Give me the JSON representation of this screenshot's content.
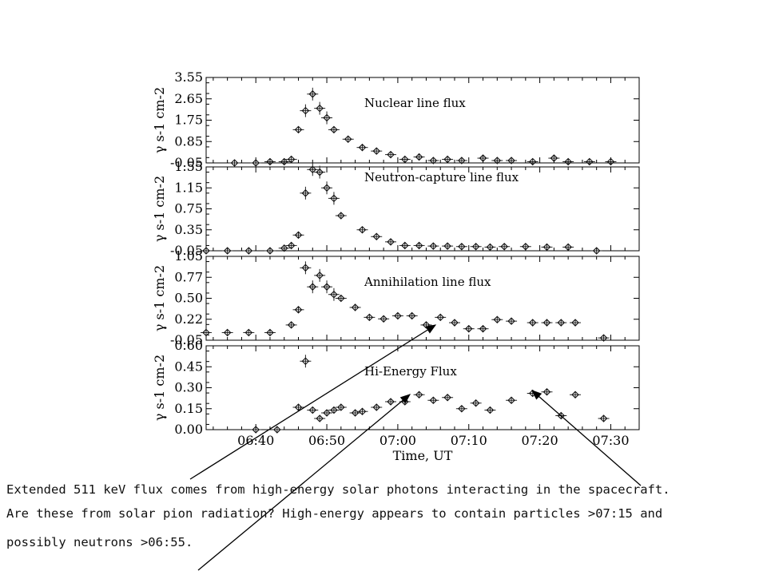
{
  "chart_data": [
    {
      "type": "scatter",
      "title": "Nuclear line flux",
      "ylabel": "γ s-1 cm-2",
      "yticks": [
        "3.55",
        "2.65",
        "1.75",
        "0.85",
        "-0.05"
      ],
      "ylim": [
        -0.05,
        3.55
      ],
      "xlim": [
        "06:33",
        "07:34"
      ],
      "points": [
        {
          "x": "06:37",
          "y": -0.05
        },
        {
          "x": "06:40",
          "y": -0.05
        },
        {
          "x": "06:42",
          "y": 0.0
        },
        {
          "x": "06:44",
          "y": 0.0
        },
        {
          "x": "06:45",
          "y": 0.1
        },
        {
          "x": "06:46",
          "y": 1.35
        },
        {
          "x": "06:47",
          "y": 2.15
        },
        {
          "x": "06:48",
          "y": 2.85
        },
        {
          "x": "06:49",
          "y": 2.25
        },
        {
          "x": "06:50",
          "y": 1.85
        },
        {
          "x": "06:51",
          "y": 1.35
        },
        {
          "x": "06:53",
          "y": 0.95
        },
        {
          "x": "06:55",
          "y": 0.6
        },
        {
          "x": "06:57",
          "y": 0.45
        },
        {
          "x": "06:59",
          "y": 0.3
        },
        {
          "x": "07:01",
          "y": 0.1
        },
        {
          "x": "07:03",
          "y": 0.2
        },
        {
          "x": "07:05",
          "y": 0.05
        },
        {
          "x": "07:07",
          "y": 0.1
        },
        {
          "x": "07:09",
          "y": 0.05
        },
        {
          "x": "07:12",
          "y": 0.15
        },
        {
          "x": "07:14",
          "y": 0.05
        },
        {
          "x": "07:16",
          "y": 0.05
        },
        {
          "x": "07:19",
          "y": 0.0
        },
        {
          "x": "07:22",
          "y": 0.15
        },
        {
          "x": "07:24",
          "y": 0.0
        },
        {
          "x": "07:27",
          "y": 0.0
        },
        {
          "x": "07:30",
          "y": 0.0
        }
      ]
    },
    {
      "type": "scatter",
      "title": "Neutron-capture line flux",
      "ylabel": "γ s-1 cm-2",
      "yticks": [
        "1.55",
        "1.15",
        "0.75",
        "0.35",
        "-0.05"
      ],
      "ylim": [
        -0.05,
        1.55
      ],
      "xlim": [
        "06:33",
        "07:34"
      ],
      "points": [
        {
          "x": "06:33",
          "y": -0.05
        },
        {
          "x": "06:36",
          "y": -0.05
        },
        {
          "x": "06:39",
          "y": -0.05
        },
        {
          "x": "06:42",
          "y": -0.05
        },
        {
          "x": "06:44",
          "y": 0.0
        },
        {
          "x": "06:45",
          "y": 0.05
        },
        {
          "x": "06:46",
          "y": 0.25
        },
        {
          "x": "06:47",
          "y": 1.05
        },
        {
          "x": "06:48",
          "y": 1.5
        },
        {
          "x": "06:49",
          "y": 1.45
        },
        {
          "x": "06:50",
          "y": 1.15
        },
        {
          "x": "06:51",
          "y": 0.95
        },
        {
          "x": "06:52",
          "y": 0.62
        },
        {
          "x": "06:55",
          "y": 0.35
        },
        {
          "x": "06:57",
          "y": 0.22
        },
        {
          "x": "06:59",
          "y": 0.12
        },
        {
          "x": "07:01",
          "y": 0.05
        },
        {
          "x": "07:03",
          "y": 0.05
        },
        {
          "x": "07:05",
          "y": 0.04
        },
        {
          "x": "07:07",
          "y": 0.04
        },
        {
          "x": "07:09",
          "y": 0.03
        },
        {
          "x": "07:11",
          "y": 0.03
        },
        {
          "x": "07:13",
          "y": 0.02
        },
        {
          "x": "07:15",
          "y": 0.03
        },
        {
          "x": "07:18",
          "y": 0.03
        },
        {
          "x": "07:21",
          "y": 0.02
        },
        {
          "x": "07:24",
          "y": 0.02
        },
        {
          "x": "07:28",
          "y": -0.05
        }
      ]
    },
    {
      "type": "scatter",
      "title": "Annihilation line flux",
      "ylabel": "γ s-1 cm-2",
      "yticks": [
        "1.05",
        "0.77",
        "0.50",
        "0.22",
        "-0.05"
      ],
      "ylim": [
        -0.05,
        1.05
      ],
      "xlim": [
        "06:33",
        "07:34"
      ],
      "points": [
        {
          "x": "06:33",
          "y": 0.05
        },
        {
          "x": "06:36",
          "y": 0.05
        },
        {
          "x": "06:39",
          "y": 0.05
        },
        {
          "x": "06:42",
          "y": 0.05
        },
        {
          "x": "06:45",
          "y": 0.15
        },
        {
          "x": "06:46",
          "y": 0.35
        },
        {
          "x": "06:47",
          "y": 0.9
        },
        {
          "x": "06:48",
          "y": 0.65
        },
        {
          "x": "06:49",
          "y": 0.8
        },
        {
          "x": "06:50",
          "y": 0.65
        },
        {
          "x": "06:51",
          "y": 0.55
        },
        {
          "x": "06:52",
          "y": 0.5
        },
        {
          "x": "06:54",
          "y": 0.38
        },
        {
          "x": "06:56",
          "y": 0.25
        },
        {
          "x": "06:58",
          "y": 0.23
        },
        {
          "x": "07:00",
          "y": 0.27
        },
        {
          "x": "07:02",
          "y": 0.27
        },
        {
          "x": "07:04",
          "y": 0.15
        },
        {
          "x": "07:06",
          "y": 0.25
        },
        {
          "x": "07:08",
          "y": 0.18
        },
        {
          "x": "07:10",
          "y": 0.1
        },
        {
          "x": "07:12",
          "y": 0.1
        },
        {
          "x": "07:14",
          "y": 0.22
        },
        {
          "x": "07:16",
          "y": 0.2
        },
        {
          "x": "07:19",
          "y": 0.18
        },
        {
          "x": "07:21",
          "y": 0.18
        },
        {
          "x": "07:23",
          "y": 0.18
        },
        {
          "x": "07:25",
          "y": 0.18
        },
        {
          "x": "07:29",
          "y": -0.02
        }
      ]
    },
    {
      "type": "scatter",
      "title": "Hi-Energy Flux",
      "ylabel": "γ s-1 cm-2",
      "yticks": [
        "0.60",
        "0.45",
        "0.30",
        "0.15",
        "0.00"
      ],
      "ylim": [
        0.0,
        0.6
      ],
      "xlim": [
        "06:33",
        "07:34"
      ],
      "xlabel": "Time, UT",
      "xticks": [
        "06:40",
        "06:50",
        "07:00",
        "07:10",
        "07:20",
        "07:30"
      ],
      "points": [
        {
          "x": "06:40",
          "y": 0.0
        },
        {
          "x": "06:43",
          "y": 0.0
        },
        {
          "x": "06:46",
          "y": 0.16
        },
        {
          "x": "06:47",
          "y": 0.49
        },
        {
          "x": "06:48",
          "y": 0.14
        },
        {
          "x": "06:49",
          "y": 0.08
        },
        {
          "x": "06:50",
          "y": 0.12
        },
        {
          "x": "06:51",
          "y": 0.14
        },
        {
          "x": "06:52",
          "y": 0.16
        },
        {
          "x": "06:54",
          "y": 0.12
        },
        {
          "x": "06:55",
          "y": 0.13
        },
        {
          "x": "06:57",
          "y": 0.16
        },
        {
          "x": "06:59",
          "y": 0.2
        },
        {
          "x": "07:01",
          "y": 0.2
        },
        {
          "x": "07:03",
          "y": 0.25
        },
        {
          "x": "07:05",
          "y": 0.21
        },
        {
          "x": "07:07",
          "y": 0.23
        },
        {
          "x": "07:09",
          "y": 0.15
        },
        {
          "x": "07:11",
          "y": 0.19
        },
        {
          "x": "07:13",
          "y": 0.14
        },
        {
          "x": "07:16",
          "y": 0.21
        },
        {
          "x": "07:19",
          "y": 0.26
        },
        {
          "x": "07:21",
          "y": 0.27
        },
        {
          "x": "07:23",
          "y": 0.1
        },
        {
          "x": "07:25",
          "y": 0.25
        },
        {
          "x": "07:29",
          "y": 0.08
        }
      ]
    }
  ],
  "caption": {
    "line1": "Extended 511 keV flux comes from high-energy solar photons interacting in the spacecraft.",
    "line2": "Are these from solar pion radiation? High-energy appears to contain particles >07:15 and",
    "line3": "possibly neutrons >06:55."
  }
}
